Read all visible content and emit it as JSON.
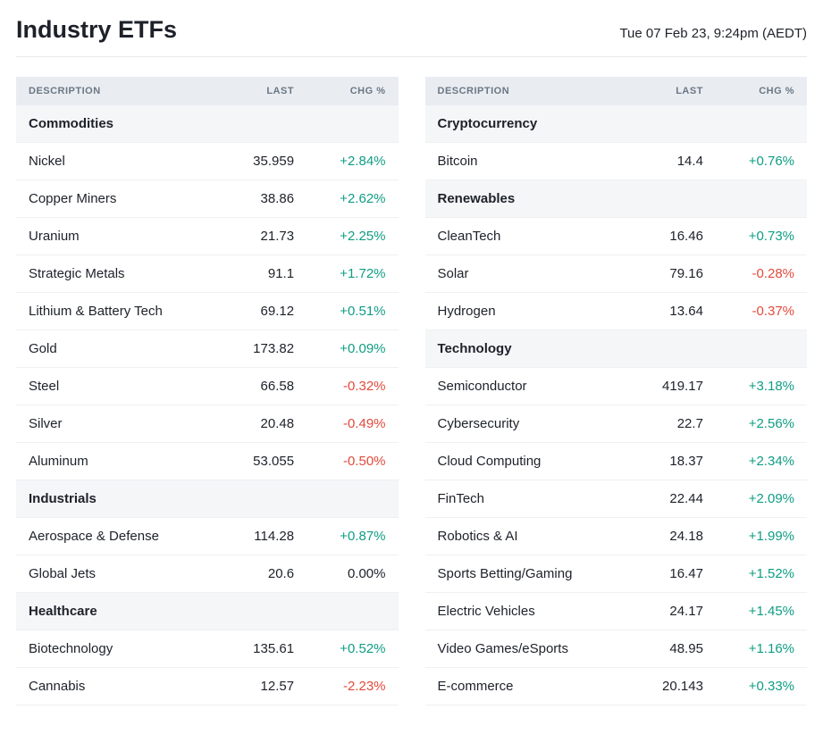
{
  "page": {
    "title": "Industry ETFs",
    "timestamp": "Tue 07 Feb 23, 9:24pm (AEDT)",
    "background_color": "#ffffff",
    "title_fontsize": 27,
    "title_color": "#1d2129",
    "timestamp_fontsize": 15,
    "divider_color": "#e6e8ea"
  },
  "table_style": {
    "header_bg": "#e9edf1",
    "header_text_color": "#6b7785",
    "header_fontsize": 11,
    "section_bg": "#f4f6f8",
    "row_border_color": "#eef0f2",
    "cell_fontsize": 15,
    "positive_color": "#0f9d84",
    "negative_color": "#e24a3b",
    "neutral_color": "#1d2129"
  },
  "headers": {
    "description": "DESCRIPTION",
    "last": "LAST",
    "chg": "CHG %"
  },
  "columns": [
    {
      "rows": [
        {
          "type": "section",
          "label": "Commodities"
        },
        {
          "type": "data",
          "desc": "Nickel",
          "last": "35.959",
          "chg": "+2.84%",
          "dir": "pos"
        },
        {
          "type": "data",
          "desc": "Copper Miners",
          "last": "38.86",
          "chg": "+2.62%",
          "dir": "pos"
        },
        {
          "type": "data",
          "desc": "Uranium",
          "last": "21.73",
          "chg": "+2.25%",
          "dir": "pos"
        },
        {
          "type": "data",
          "desc": "Strategic Metals",
          "last": "91.1",
          "chg": "+1.72%",
          "dir": "pos"
        },
        {
          "type": "data",
          "desc": "Lithium & Battery Tech",
          "last": "69.12",
          "chg": "+0.51%",
          "dir": "pos"
        },
        {
          "type": "data",
          "desc": "Gold",
          "last": "173.82",
          "chg": "+0.09%",
          "dir": "pos"
        },
        {
          "type": "data",
          "desc": "Steel",
          "last": "66.58",
          "chg": "-0.32%",
          "dir": "neg"
        },
        {
          "type": "data",
          "desc": "Silver",
          "last": "20.48",
          "chg": "-0.49%",
          "dir": "neg"
        },
        {
          "type": "data",
          "desc": "Aluminum",
          "last": "53.055",
          "chg": "-0.50%",
          "dir": "neg"
        },
        {
          "type": "section",
          "label": "Industrials"
        },
        {
          "type": "data",
          "desc": "Aerospace & Defense",
          "last": "114.28",
          "chg": "+0.87%",
          "dir": "pos"
        },
        {
          "type": "data",
          "desc": "Global Jets",
          "last": "20.6",
          "chg": "0.00%",
          "dir": "neu"
        },
        {
          "type": "section",
          "label": "Healthcare"
        },
        {
          "type": "data",
          "desc": "Biotechnology",
          "last": "135.61",
          "chg": "+0.52%",
          "dir": "pos"
        },
        {
          "type": "data",
          "desc": "Cannabis",
          "last": "12.57",
          "chg": "-2.23%",
          "dir": "neg"
        }
      ]
    },
    {
      "rows": [
        {
          "type": "section",
          "label": "Cryptocurrency"
        },
        {
          "type": "data",
          "desc": "Bitcoin",
          "last": "14.4",
          "chg": "+0.76%",
          "dir": "pos"
        },
        {
          "type": "section",
          "label": "Renewables"
        },
        {
          "type": "data",
          "desc": "CleanTech",
          "last": "16.46",
          "chg": "+0.73%",
          "dir": "pos"
        },
        {
          "type": "data",
          "desc": "Solar",
          "last": "79.16",
          "chg": "-0.28%",
          "dir": "neg"
        },
        {
          "type": "data",
          "desc": "Hydrogen",
          "last": "13.64",
          "chg": "-0.37%",
          "dir": "neg"
        },
        {
          "type": "section",
          "label": "Technology"
        },
        {
          "type": "data",
          "desc": "Semiconductor",
          "last": "419.17",
          "chg": "+3.18%",
          "dir": "pos"
        },
        {
          "type": "data",
          "desc": "Cybersecurity",
          "last": "22.7",
          "chg": "+2.56%",
          "dir": "pos"
        },
        {
          "type": "data",
          "desc": "Cloud Computing",
          "last": "18.37",
          "chg": "+2.34%",
          "dir": "pos"
        },
        {
          "type": "data",
          "desc": "FinTech",
          "last": "22.44",
          "chg": "+2.09%",
          "dir": "pos"
        },
        {
          "type": "data",
          "desc": "Robotics & AI",
          "last": "24.18",
          "chg": "+1.99%",
          "dir": "pos"
        },
        {
          "type": "data",
          "desc": "Sports Betting/Gaming",
          "last": "16.47",
          "chg": "+1.52%",
          "dir": "pos"
        },
        {
          "type": "data",
          "desc": "Electric Vehicles",
          "last": "24.17",
          "chg": "+1.45%",
          "dir": "pos"
        },
        {
          "type": "data",
          "desc": "Video Games/eSports",
          "last": "48.95",
          "chg": "+1.16%",
          "dir": "pos"
        },
        {
          "type": "data",
          "desc": "E-commerce",
          "last": "20.143",
          "chg": "+0.33%",
          "dir": "pos"
        }
      ]
    }
  ]
}
